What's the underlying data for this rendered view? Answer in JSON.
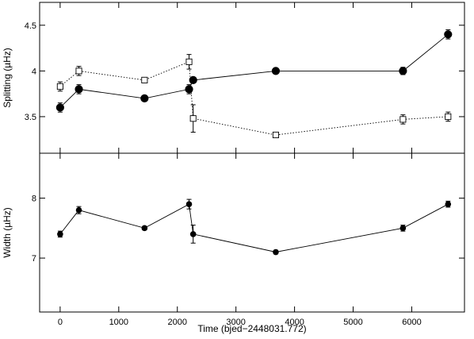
{
  "chart_data": [
    {
      "type": "scatter",
      "panel": "top",
      "ylabel": "Splitting (µHz)",
      "ylim": [
        3.1,
        4.75
      ],
      "xlim": [
        -350,
        6900
      ],
      "yticks": [
        3.5,
        4,
        4.5
      ],
      "ytick_labels": [
        "3.5",
        "4",
        "4.5"
      ],
      "series": [
        {
          "style": "filled-circle-solid-line",
          "x": [
            0,
            320,
            1440,
            2200,
            2270,
            3680,
            5850,
            6620
          ],
          "y": [
            3.6,
            3.8,
            3.7,
            3.8,
            3.9,
            4.0,
            4.0,
            4.4
          ],
          "err": [
            0.05,
            0.05,
            0.03,
            0.05,
            0.03,
            0.03,
            0.04,
            0.05
          ]
        },
        {
          "style": "open-square-dotted-line",
          "x": [
            0,
            320,
            1440,
            2200,
            2270,
            3680,
            5850,
            6620
          ],
          "y": [
            3.83,
            4.0,
            3.9,
            4.1,
            3.48,
            3.3,
            3.47,
            3.5
          ],
          "err": [
            0.05,
            0.05,
            0.02,
            0.08,
            0.15,
            0.03,
            0.05,
            0.05
          ]
        }
      ]
    },
    {
      "type": "scatter",
      "panel": "bottom",
      "xlabel": "Time (bjed−2448031.772)",
      "ylabel": "Width (µHz)",
      "ylim": [
        6.1,
        8.75
      ],
      "xlim": [
        -350,
        6900
      ],
      "xticks": [
        0,
        1000,
        2000,
        3000,
        4000,
        5000,
        6000
      ],
      "xtick_labels": [
        "0",
        "1000",
        "2000",
        "3000",
        "4000",
        "5000",
        "6000"
      ],
      "yticks": [
        7,
        8
      ],
      "ytick_labels": [
        "7",
        "8"
      ],
      "series": [
        {
          "style": "filled-circle-solid-line",
          "x": [
            0,
            320,
            1440,
            2200,
            2270,
            3680,
            5850,
            6620
          ],
          "y": [
            7.4,
            7.8,
            7.5,
            7.9,
            7.4,
            7.1,
            7.5,
            7.9
          ],
          "err": [
            0.05,
            0.06,
            0.03,
            0.08,
            0.15,
            0.03,
            0.05,
            0.05
          ]
        }
      ]
    }
  ]
}
